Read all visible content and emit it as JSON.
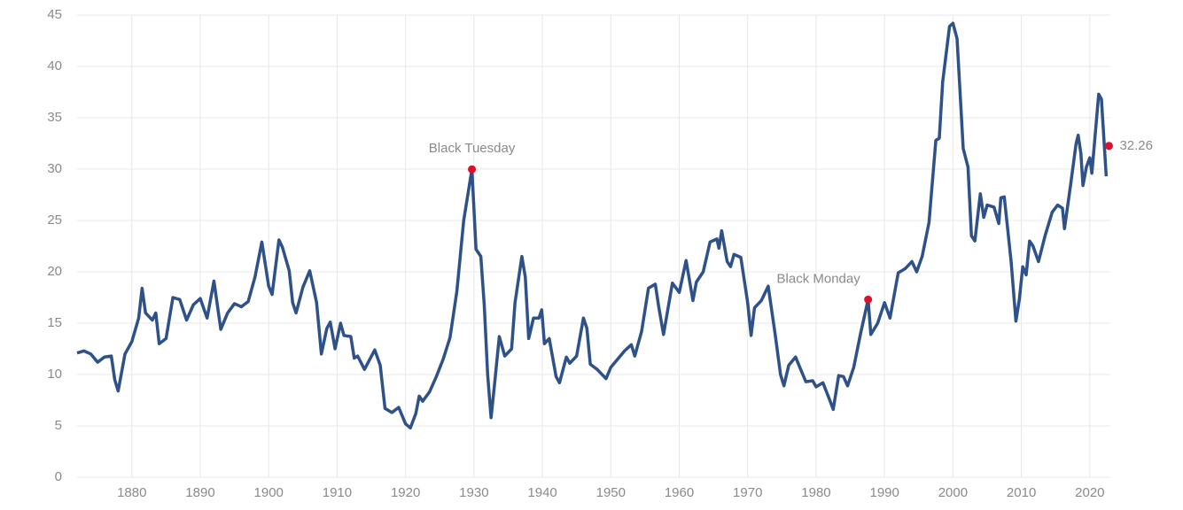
{
  "chart_data": {
    "type": "line",
    "x": [
      1872,
      1873,
      1874,
      1875,
      1876,
      1877,
      1877.5,
      1878,
      1879,
      1880,
      1881,
      1881.5,
      1882,
      1883,
      1883.5,
      1884,
      1885,
      1886,
      1887,
      1888,
      1889,
      1890,
      1891,
      1892,
      1893,
      1894,
      1895,
      1896,
      1897,
      1898,
      1899,
      1900,
      1900.5,
      1901.5,
      1902,
      1903,
      1903.5,
      1904,
      1905,
      1906,
      1907,
      1907.7,
      1908.5,
      1909,
      1909.7,
      1910.5,
      1911,
      1912,
      1912.5,
      1913,
      1914,
      1915.5,
      1916.3,
      1917,
      1918,
      1919,
      1920,
      1920.7,
      1921.5,
      1922,
      1922.5,
      1923.5,
      1924.5,
      1925.5,
      1926.5,
      1927.5,
      1928.5,
      1929.7,
      1930.3,
      1931,
      1931.5,
      1932,
      1932.5,
      1933,
      1933.7,
      1934.5,
      1935.5,
      1936,
      1937,
      1937.5,
      1938,
      1938.7,
      1939.5,
      1939.9,
      1940.3,
      1941,
      1942,
      1942.5,
      1943.5,
      1944,
      1945,
      1946,
      1946.5,
      1947,
      1948,
      1949.3,
      1950,
      1951,
      1952,
      1953,
      1953.5,
      1954.5,
      1955.5,
      1956.5,
      1957,
      1957.7,
      1959,
      1960,
      1961,
      1962,
      1962.5,
      1963.5,
      1964.5,
      1965.5,
      1965.8,
      1966.2,
      1967,
      1967.5,
      1968,
      1969,
      1970,
      1970.5,
      1971,
      1972,
      1973,
      1974,
      1974.8,
      1975.3,
      1976,
      1977,
      1978.5,
      1979.5,
      1980,
      1981,
      1982,
      1982.5,
      1983.3,
      1984,
      1984.6,
      1985.5,
      1986.5,
      1987.6,
      1988,
      1989,
      1990,
      1990.8,
      1992,
      1993,
      1994,
      1994.7,
      1995.5,
      1996.5,
      1997.5,
      1998,
      1998.5,
      1999.5,
      2000,
      2000.6,
      2001.5,
      2002.2,
      2002.7,
      2003.2,
      2004,
      2004.5,
      2005,
      2006,
      2006.7,
      2007,
      2007.5,
      2008.5,
      2009.2,
      2009.7,
      2010.2,
      2010.7,
      2011.2,
      2011.7,
      2012.5,
      2013.5,
      2014.5,
      2015.3,
      2016,
      2016.3,
      2017.2,
      2018,
      2018.3,
      2018.7,
      2019,
      2019.5,
      2020,
      2020.3,
      2021.3,
      2021.7,
      2022.4
    ],
    "values": [
      12.1,
      12.3,
      12.0,
      11.2,
      11.7,
      11.8,
      9.5,
      8.4,
      12,
      13.2,
      15.5,
      18.4,
      16,
      15.3,
      16,
      13,
      13.5,
      17.5,
      17.3,
      15.3,
      16.8,
      17.4,
      15.5,
      19.1,
      14.4,
      16,
      16.9,
      16.6,
      17.1,
      19.5,
      22.9,
      18.6,
      17.8,
      23.1,
      22.4,
      20.1,
      17,
      16,
      18.5,
      20.1,
      17,
      12,
      14.5,
      15.1,
      12.5,
      15,
      13.8,
      13.7,
      11.6,
      11.8,
      10.5,
      12.4,
      10.9,
      6.7,
      6.3,
      6.8,
      5.2,
      4.8,
      6.2,
      7.9,
      7.4,
      8.3,
      9.8,
      11.5,
      13.6,
      18.1,
      25,
      29.98,
      22.2,
      21.5,
      16.8,
      10,
      5.8,
      9,
      13.7,
      11.8,
      12.5,
      17,
      21.5,
      19.5,
      13.5,
      15.5,
      15.5,
      16.3,
      13,
      13.5,
      9.8,
      9.2,
      11.7,
      11.1,
      11.8,
      15.5,
      14.5,
      11,
      10.5,
      9.6,
      10.7,
      11.5,
      12.3,
      12.9,
      11.8,
      14.2,
      18.4,
      18.8,
      16.6,
      13.9,
      18.9,
      18,
      21.1,
      17.2,
      19,
      20,
      22.9,
      23.2,
      22.3,
      24,
      21,
      20.5,
      21.7,
      21.4,
      17,
      13.8,
      16.5,
      17.2,
      18.6,
      14,
      10,
      8.9,
      10.9,
      11.7,
      9.3,
      9.4,
      8.8,
      9.2,
      7.5,
      6.6,
      9.9,
      9.8,
      8.9,
      10.7,
      14,
      17.3,
      13.9,
      15,
      17,
      15.5,
      19.9,
      20.3,
      21,
      20,
      21.5,
      24.8,
      32.8,
      33,
      38.5,
      43.9,
      44.2,
      42.7,
      32,
      30.2,
      23.5,
      23,
      27.6,
      25.3,
      26.5,
      26.3,
      24.7,
      27.2,
      27.3,
      21,
      15.2,
      17.3,
      20.5,
      19.7,
      23,
      22.5,
      21,
      23.6,
      25.8,
      26.5,
      26.2,
      24.2,
      28.5,
      32.5,
      33.3,
      31.5,
      28.4,
      30.2,
      31.1,
      29.6,
      37.3,
      36.8,
      29.3
    ],
    "color": "#2e5189",
    "xlim": [
      1872,
      2023
    ],
    "ylim": [
      0,
      45
    ],
    "xticks": [
      1880,
      1890,
      1900,
      1910,
      1920,
      1930,
      1940,
      1950,
      1960,
      1970,
      1980,
      1990,
      2000,
      2010,
      2020
    ],
    "yticks": [
      0,
      5,
      10,
      15,
      20,
      25,
      30,
      35,
      40,
      45
    ],
    "grid": true,
    "annotations": [
      {
        "label": "Black Tuesday",
        "x": 1929.7,
        "y": 29.98,
        "color": "#e0102c"
      },
      {
        "label": "Black Monday",
        "x": 1987.6,
        "y": 17.3,
        "color": "#e0102c"
      },
      {
        "label": "32.26",
        "x": 2022.8,
        "y": 32.26,
        "color": "#e0102c"
      }
    ]
  }
}
